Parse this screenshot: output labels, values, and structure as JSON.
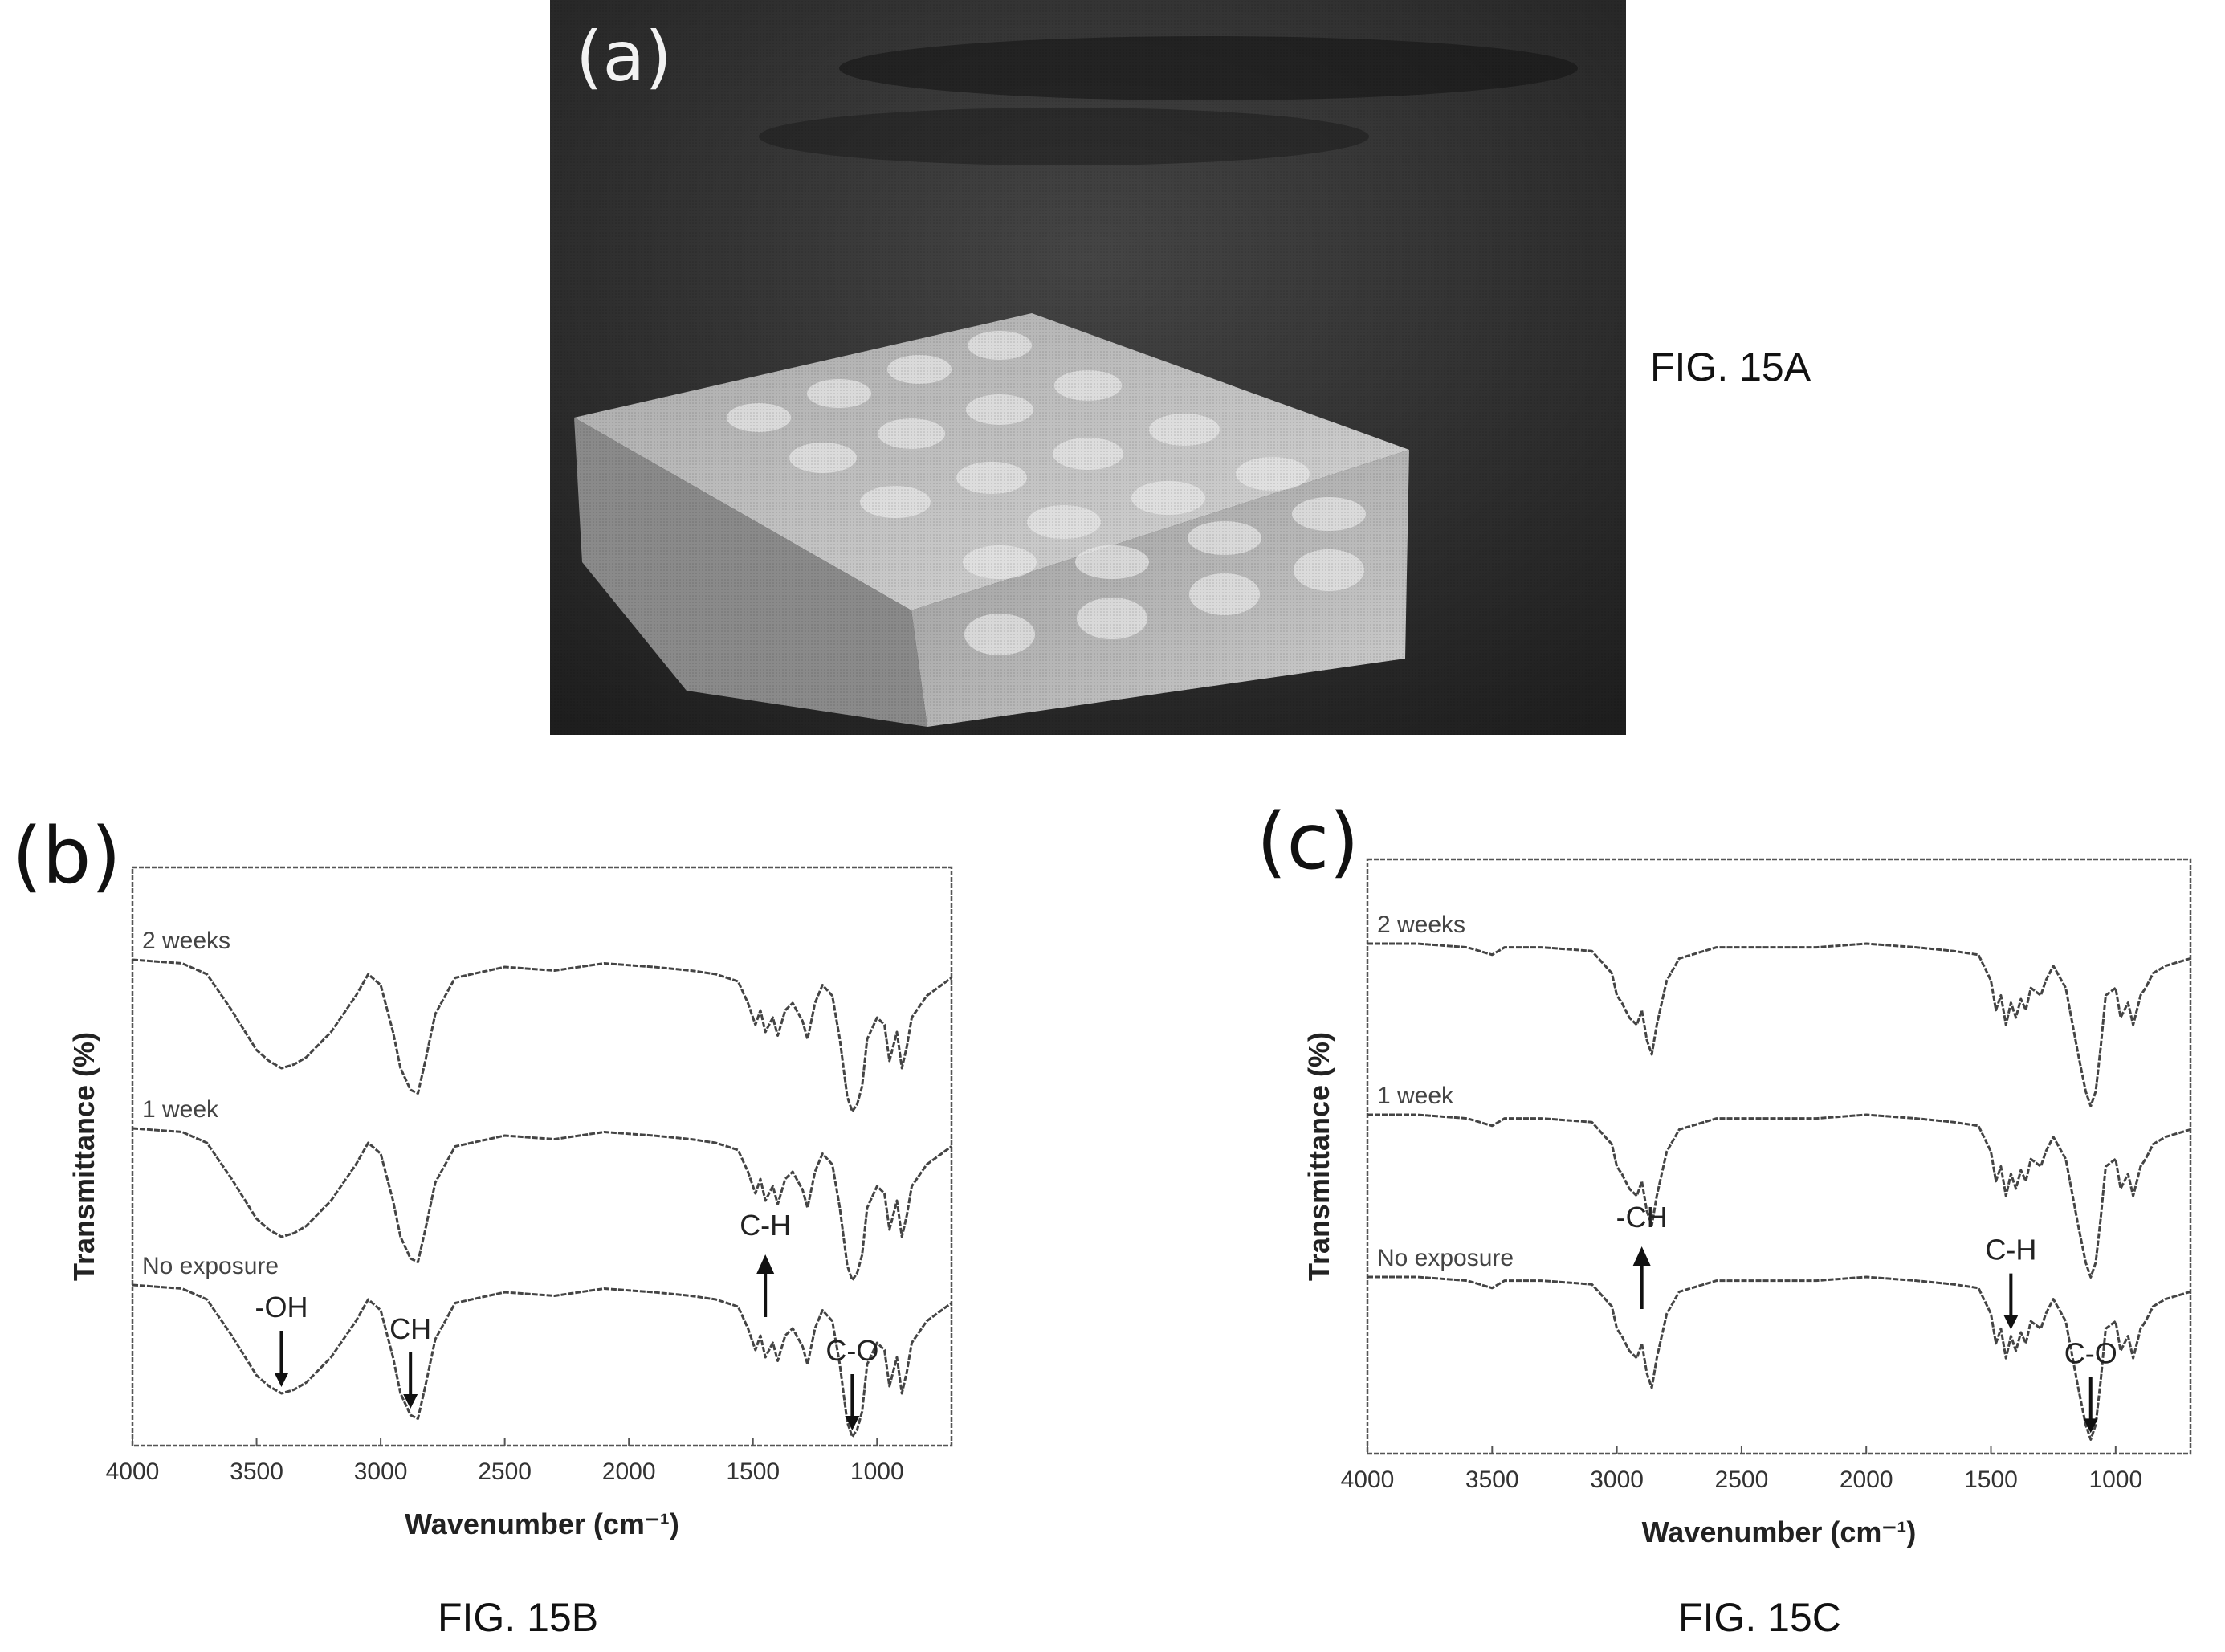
{
  "figure_labels": {
    "a": "FIG. 15A",
    "b": "FIG. 15B",
    "c": "FIG. 15C"
  },
  "panel_letters": {
    "a": "(a)",
    "b": "(b)",
    "c": "(c)"
  },
  "chart_data": [
    {
      "type": "line",
      "panel": "(b)",
      "xlabel": "Wavenumber (cm⁻¹)",
      "ylabel": "Transmittance (%)",
      "xlim": [
        4000,
        700
      ],
      "x_ticks": [
        4000,
        3500,
        3000,
        2500,
        2000,
        1500,
        1000
      ],
      "grid": false,
      "series": [
        {
          "name": "2 weeks",
          "x": [
            4000,
            3800,
            3700,
            3600,
            3500,
            3450,
            3400,
            3350,
            3300,
            3200,
            3100,
            3050,
            3000,
            2950,
            2920,
            2880,
            2850,
            2820,
            2780,
            2700,
            2500,
            2300,
            2100,
            1900,
            1750,
            1650,
            1560,
            1520,
            1490,
            1470,
            1450,
            1420,
            1400,
            1370,
            1340,
            1300,
            1280,
            1250,
            1220,
            1180,
            1150,
            1120,
            1100,
            1080,
            1060,
            1040,
            1000,
            970,
            950,
            920,
            900,
            880,
            860,
            840,
            800,
            760,
            720,
            700
          ],
          "y": [
            100,
            99,
            96,
            86,
            75,
            72,
            70,
            71,
            73,
            80,
            90,
            96,
            93,
            80,
            70,
            64,
            63,
            72,
            85,
            95,
            98,
            97,
            99,
            98,
            97,
            96,
            94,
            88,
            82,
            86,
            80,
            84,
            79,
            86,
            88,
            83,
            78,
            88,
            93,
            90,
            78,
            62,
            58,
            60,
            65,
            78,
            84,
            82,
            72,
            80,
            70,
            76,
            84,
            86,
            90,
            92,
            94,
            95
          ]
        },
        {
          "name": "1 week",
          "x": [
            4000,
            3800,
            3700,
            3600,
            3500,
            3450,
            3400,
            3350,
            3300,
            3200,
            3100,
            3050,
            3000,
            2950,
            2920,
            2880,
            2850,
            2820,
            2780,
            2700,
            2500,
            2300,
            2100,
            1900,
            1750,
            1650,
            1560,
            1520,
            1490,
            1470,
            1450,
            1420,
            1400,
            1370,
            1340,
            1300,
            1280,
            1250,
            1220,
            1180,
            1150,
            1120,
            1100,
            1080,
            1060,
            1040,
            1000,
            970,
            950,
            920,
            900,
            880,
            860,
            840,
            800,
            760,
            720,
            700
          ],
          "y": [
            100,
            99,
            96,
            86,
            75,
            72,
            70,
            71,
            73,
            80,
            90,
            96,
            93,
            80,
            70,
            64,
            63,
            72,
            85,
            95,
            98,
            97,
            99,
            98,
            97,
            96,
            94,
            88,
            82,
            86,
            80,
            84,
            79,
            86,
            88,
            83,
            78,
            88,
            93,
            90,
            78,
            62,
            58,
            60,
            65,
            78,
            84,
            82,
            72,
            80,
            70,
            76,
            84,
            86,
            90,
            92,
            94,
            95
          ]
        },
        {
          "name": "No exposure",
          "x": [
            4000,
            3800,
            3700,
            3600,
            3500,
            3450,
            3400,
            3350,
            3300,
            3200,
            3100,
            3050,
            3000,
            2950,
            2920,
            2880,
            2850,
            2820,
            2780,
            2700,
            2500,
            2300,
            2100,
            1900,
            1750,
            1650,
            1560,
            1520,
            1490,
            1470,
            1450,
            1420,
            1400,
            1370,
            1340,
            1300,
            1280,
            1250,
            1220,
            1180,
            1150,
            1120,
            1100,
            1080,
            1060,
            1040,
            1000,
            970,
            950,
            920,
            900,
            880,
            860,
            840,
            800,
            760,
            720,
            700
          ],
          "y": [
            100,
            99,
            96,
            86,
            75,
            72,
            70,
            71,
            73,
            80,
            90,
            96,
            93,
            80,
            70,
            64,
            63,
            72,
            85,
            95,
            98,
            97,
            99,
            98,
            97,
            96,
            94,
            88,
            82,
            86,
            80,
            84,
            79,
            86,
            88,
            83,
            78,
            88,
            93,
            90,
            78,
            62,
            58,
            60,
            65,
            78,
            84,
            82,
            72,
            80,
            70,
            76,
            84,
            86,
            90,
            92,
            94,
            95
          ]
        }
      ],
      "annotations": [
        {
          "text": "-OH",
          "x": 3400,
          "arrow": "down"
        },
        {
          "text": "CH",
          "x": 2880,
          "arrow": "down"
        },
        {
          "text": "C-H",
          "x": 1450,
          "arrow": "up"
        },
        {
          "text": "C-O",
          "x": 1100,
          "arrow": "down"
        }
      ]
    },
    {
      "type": "line",
      "panel": "(c)",
      "xlabel": "Wavenumber (cm⁻¹)",
      "ylabel": "Transmittance (%)",
      "xlim": [
        4000,
        700
      ],
      "x_ticks": [
        4000,
        3500,
        3000,
        2500,
        2000,
        1500,
        1000
      ],
      "grid": false,
      "series": [
        {
          "name": "2 weeks",
          "x": [
            4000,
            3800,
            3600,
            3500,
            3450,
            3300,
            3100,
            3020,
            3000,
            2980,
            2950,
            2920,
            2900,
            2880,
            2860,
            2840,
            2800,
            2750,
            2600,
            2400,
            2200,
            2000,
            1800,
            1650,
            1550,
            1500,
            1480,
            1460,
            1440,
            1420,
            1400,
            1380,
            1360,
            1340,
            1300,
            1280,
            1250,
            1200,
            1150,
            1120,
            1100,
            1080,
            1060,
            1040,
            1000,
            980,
            950,
            930,
            900,
            880,
            850,
            800,
            750,
            700
          ],
          "y": [
            100,
            100,
            99,
            97,
            99,
            99,
            98,
            92,
            86,
            84,
            80,
            78,
            82,
            74,
            70,
            78,
            90,
            96,
            99,
            99,
            99,
            100,
            99,
            98,
            97,
            90,
            82,
            86,
            78,
            84,
            80,
            85,
            82,
            88,
            86,
            90,
            94,
            88,
            70,
            60,
            56,
            60,
            72,
            86,
            88,
            80,
            84,
            78,
            86,
            88,
            92,
            94,
            95,
            96
          ]
        },
        {
          "name": "1 week",
          "x": [
            4000,
            3800,
            3600,
            3500,
            3450,
            3300,
            3100,
            3020,
            3000,
            2980,
            2950,
            2920,
            2900,
            2880,
            2860,
            2840,
            2800,
            2750,
            2600,
            2400,
            2200,
            2000,
            1800,
            1650,
            1550,
            1500,
            1480,
            1460,
            1440,
            1420,
            1400,
            1380,
            1360,
            1340,
            1300,
            1280,
            1250,
            1200,
            1150,
            1120,
            1100,
            1080,
            1060,
            1040,
            1000,
            980,
            950,
            930,
            900,
            880,
            850,
            800,
            750,
            700
          ],
          "y": [
            100,
            100,
            99,
            97,
            99,
            99,
            98,
            92,
            86,
            84,
            80,
            78,
            82,
            74,
            70,
            78,
            90,
            96,
            99,
            99,
            99,
            100,
            99,
            98,
            97,
            90,
            82,
            86,
            78,
            84,
            80,
            85,
            82,
            88,
            86,
            90,
            94,
            88,
            70,
            60,
            56,
            60,
            72,
            86,
            88,
            80,
            84,
            78,
            86,
            88,
            92,
            94,
            95,
            96
          ]
        },
        {
          "name": "No exposure",
          "x": [
            4000,
            3800,
            3600,
            3500,
            3450,
            3300,
            3100,
            3020,
            3000,
            2980,
            2950,
            2920,
            2900,
            2880,
            2860,
            2840,
            2800,
            2750,
            2600,
            2400,
            2200,
            2000,
            1800,
            1650,
            1550,
            1500,
            1480,
            1460,
            1440,
            1420,
            1400,
            1380,
            1360,
            1340,
            1300,
            1280,
            1250,
            1200,
            1150,
            1120,
            1100,
            1080,
            1060,
            1040,
            1000,
            980,
            950,
            930,
            900,
            880,
            850,
            800,
            750,
            700
          ],
          "y": [
            100,
            100,
            99,
            97,
            99,
            99,
            98,
            92,
            86,
            84,
            80,
            78,
            82,
            74,
            70,
            78,
            90,
            96,
            99,
            99,
            99,
            100,
            99,
            98,
            97,
            90,
            82,
            86,
            78,
            84,
            80,
            85,
            82,
            88,
            86,
            90,
            94,
            88,
            70,
            60,
            56,
            60,
            72,
            86,
            88,
            80,
            84,
            78,
            86,
            88,
            92,
            94,
            95,
            96
          ]
        }
      ],
      "annotations": [
        {
          "text": "-CH",
          "x": 2900,
          "arrow": "up"
        },
        {
          "text": "C-H",
          "x": 1420,
          "arrow": "down"
        },
        {
          "text": "C-O",
          "x": 1100,
          "arrow": "down"
        }
      ]
    }
  ]
}
